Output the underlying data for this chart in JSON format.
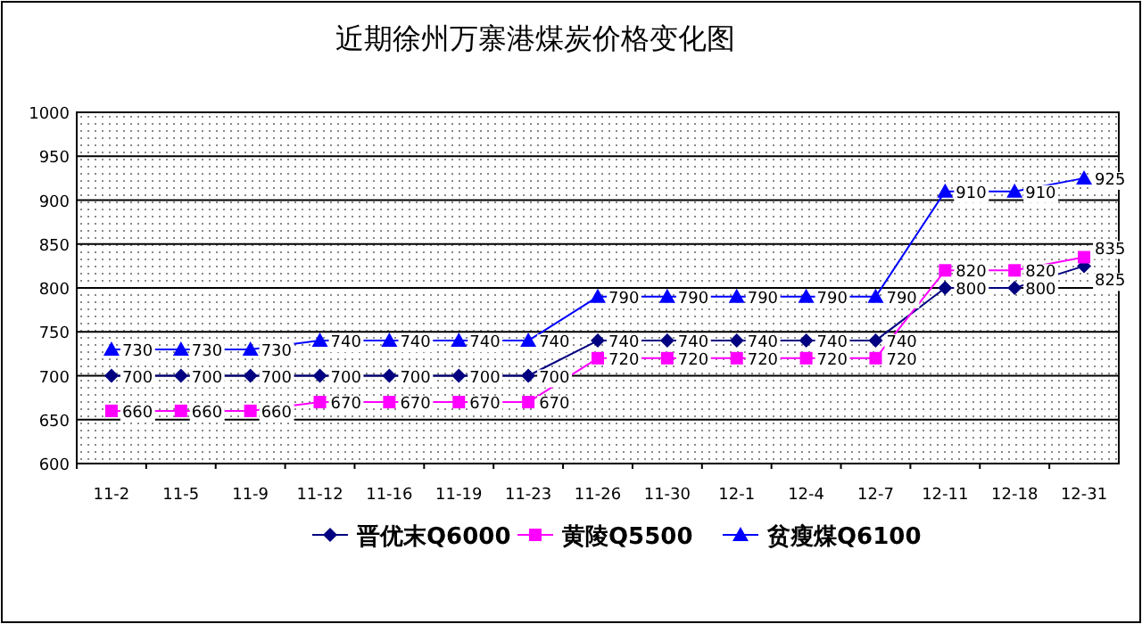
{
  "chart_data": {
    "type": "line",
    "title": "近期徐州万寨港煤炭价格变化图",
    "categories": [
      "11-2",
      "11-5",
      "11-9",
      "11-12",
      "11-16",
      "11-19",
      "11-23",
      "11-26",
      "11-30",
      "12-1",
      "12-4",
      "12-7",
      "12-11",
      "12-18",
      "12-31"
    ],
    "series": [
      {
        "name": "晋优末Q6000",
        "color": "#000080",
        "marker": "diamond",
        "values": [
          700,
          700,
          700,
          700,
          700,
          700,
          700,
          740,
          740,
          740,
          740,
          740,
          800,
          800,
          825
        ]
      },
      {
        "name": "黄陵Q5500",
        "color": "#ff00ff",
        "marker": "square",
        "values": [
          660,
          660,
          660,
          670,
          670,
          670,
          670,
          720,
          720,
          720,
          720,
          720,
          820,
          820,
          835
        ]
      },
      {
        "name": "贫瘦煤Q6100",
        "color": "#0000ff",
        "marker": "triangle",
        "values": [
          730,
          730,
          730,
          740,
          740,
          740,
          740,
          790,
          790,
          790,
          790,
          790,
          910,
          910,
          925
        ]
      }
    ],
    "ylim": [
      600,
      1000
    ],
    "yticks": [
      600,
      650,
      700,
      750,
      800,
      850,
      900,
      950,
      1000
    ],
    "grid": "y",
    "legend": "bottom",
    "data_labels": true,
    "line_style": "solid"
  }
}
